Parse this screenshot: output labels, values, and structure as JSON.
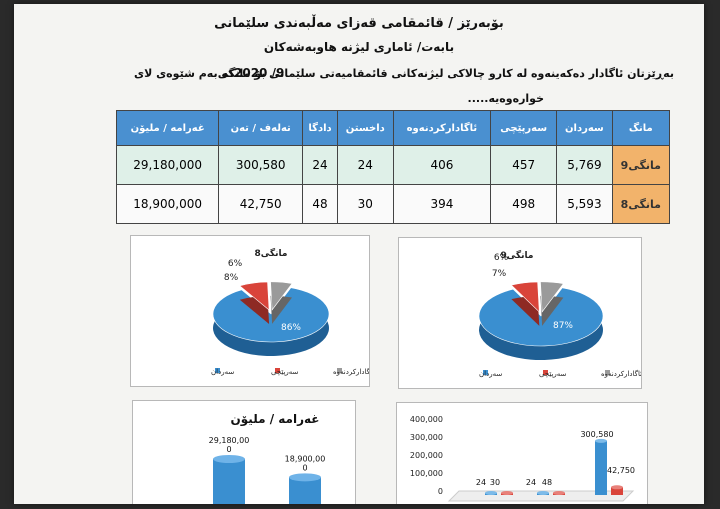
{
  "header": {
    "line1": "بۆبەرێز / قائمقامی قەزای مەڵبەندی سلێمانی",
    "line2": "بابەت/ ئاماری لیژنە هاوبەشەکان",
    "line3": "بەڕێزتان ئاگادار دەکەینەوە لە کارو چالاکی لیژنەکانی قائمقامیەتی سلێمانی بۆ مانگی",
    "month_value": "2020 /9",
    "side_note": "کە بەم شێوەی لای",
    "line4": "خوارەوەیە....."
  },
  "table": {
    "headers": [
      "مانگ",
      "سەردان",
      "سەرپێچی",
      "ئاگادارکردنەوە",
      "داخستن",
      "دادگا",
      "تەلەف / تەن",
      "غەرامە / ملیۆن"
    ],
    "rows": [
      {
        "month": "مانگی9",
        "values": [
          "5,769",
          "457",
          "406",
          "24",
          "24",
          "300,580",
          "29,180,000"
        ]
      },
      {
        "month": "مانگی8",
        "values": [
          "5,593",
          "498",
          "394",
          "30",
          "48",
          "42,750",
          "18,900,000"
        ]
      }
    ]
  },
  "chart_data": [
    {
      "type": "pie",
      "title": "مانگی8",
      "labels": [
        "سەردان",
        "سەرپێچی",
        "ئاگادارکردنەوە"
      ],
      "values": [
        86,
        8,
        6
      ],
      "value_labels": [
        "86%",
        "8%",
        "6%"
      ],
      "colors": [
        "#3a8fd0",
        "#d9443a",
        "#9a9a9a"
      ]
    },
    {
      "type": "pie",
      "title": "مانگی9",
      "labels": [
        "سەردان",
        "سەرپێچی",
        "ئاگادارکردنەوە"
      ],
      "values": [
        87,
        7,
        6
      ],
      "value_labels": [
        "87%",
        "7%",
        "6%"
      ],
      "colors": [
        "#3a8fd0",
        "#d9443a",
        "#9a9a9a"
      ]
    },
    {
      "type": "bar",
      "title": "غەرامە / ملیۆن",
      "categories": [
        "",
        ""
      ],
      "values": [
        29180000,
        18900000
      ],
      "value_labels": [
        "29,180,00 0",
        "18,900,00 0"
      ],
      "colors": [
        "#3a8fd0"
      ]
    },
    {
      "type": "bar",
      "ylim": [
        0,
        400000
      ],
      "yticks": [
        "400,000",
        "300,000",
        "200,000",
        "100,000",
        "0"
      ],
      "series": [
        {
          "values": [
            24,
            24,
            300580
          ]
        },
        {
          "values": [
            30,
            48,
            42750
          ]
        }
      ],
      "value_labels": [
        "24",
        "30",
        "24",
        "48",
        "300,580",
        "42,750"
      ],
      "colors": [
        "#3a8fd0",
        "#d9443a"
      ]
    }
  ]
}
